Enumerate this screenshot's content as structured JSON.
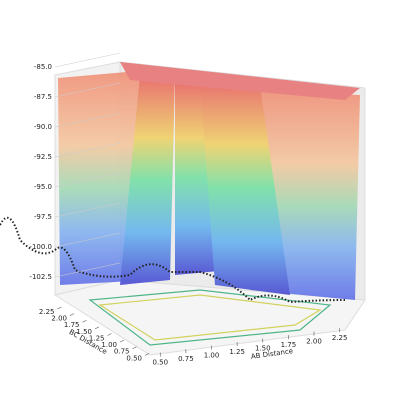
{
  "chart_data": {
    "type": "surface",
    "xlabel": "AB Distance",
    "ylabel": "BC Distance",
    "xlim": [
      0.4,
      2.4
    ],
    "ylim": [
      0.4,
      2.4
    ],
    "zlim": [
      -104,
      -84
    ],
    "xticks": [
      {
        "value": 0.5,
        "label": "0.50"
      },
      {
        "value": 0.75,
        "label": "0.75"
      },
      {
        "value": 1.0,
        "label": "1.00"
      },
      {
        "value": 1.25,
        "label": "1.25"
      },
      {
        "value": 1.5,
        "label": "1.50"
      },
      {
        "value": 1.75,
        "label": "1.75"
      },
      {
        "value": 2.0,
        "label": "2.00"
      },
      {
        "value": 2.25,
        "label": "2.25"
      }
    ],
    "yticks": [
      {
        "value": 0.5,
        "label": "0.50"
      },
      {
        "value": 0.75,
        "label": "0.75"
      },
      {
        "value": 1.0,
        "label": "1.00"
      },
      {
        "value": 1.25,
        "label": "1.25"
      },
      {
        "value": 1.5,
        "label": "1.50"
      },
      {
        "value": 1.75,
        "label": "1.75"
      },
      {
        "value": 2.0,
        "label": "2.00"
      },
      {
        "value": 2.25,
        "label": "2.25"
      }
    ],
    "zticks": [
      {
        "value": -85,
        "label": "-85.0"
      },
      {
        "value": -87.5,
        "label": "-87.5"
      },
      {
        "value": -90,
        "label": "-90.0"
      },
      {
        "value": -92.5,
        "label": "-92.5"
      },
      {
        "value": -95,
        "label": "-95.0"
      },
      {
        "value": -97.5,
        "label": "-97.5"
      },
      {
        "value": -100,
        "label": "-100.0"
      },
      {
        "value": -102.5,
        "label": "-102.5"
      }
    ],
    "grid": true
  }
}
